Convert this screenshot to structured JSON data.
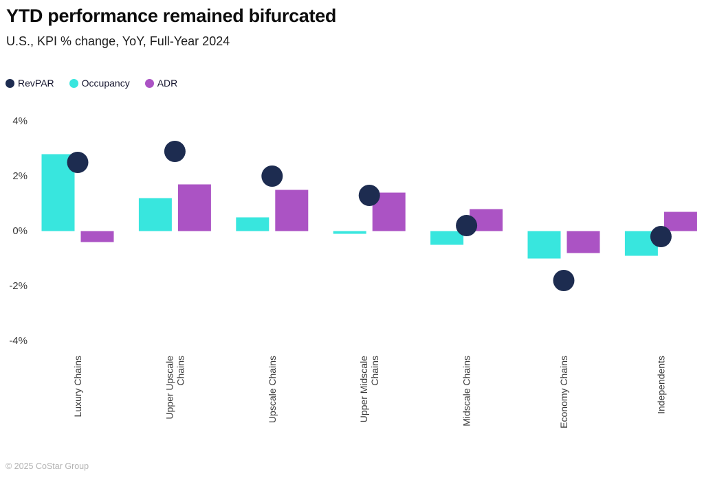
{
  "header": {
    "title": "YTD performance remained bifurcated",
    "subtitle": "U.S., KPI % change, YoY, Full-Year 2024"
  },
  "colors": {
    "revpar_navy": "#1d2c50",
    "occupancy_cyan": "#38e6de",
    "adr_purple": "#ab53c4",
    "axis_text": "#3a3a3a",
    "footer_text": "#b2b2b2"
  },
  "chart_data": {
    "type": "bar",
    "title": "YTD performance remained bifurcated",
    "subtitle": "U.S., KPI % change, YoY, Full-Year 2024",
    "xlabel": "",
    "ylabel": "KPI % change YoY",
    "ylim": [
      -4,
      4
    ],
    "grid": false,
    "legend_position": "top",
    "yticks": [
      {
        "label": "4%",
        "value": 4
      },
      {
        "label": "2%",
        "value": 2
      },
      {
        "label": "0%",
        "value": 0
      },
      {
        "label": "-2%",
        "value": -2
      },
      {
        "label": "-4%",
        "value": -4
      }
    ],
    "categories": [
      "Luxury Chains",
      "Upper Upscale Chains",
      "Upscale Chains",
      "Upper Midscale Chains",
      "Midscale Chains",
      "Economy Chains",
      "Independents"
    ],
    "category_label_lines": [
      [
        "Luxury Chains"
      ],
      [
        "Upper Upscale",
        "Chains"
      ],
      [
        "Upscale Chains"
      ],
      [
        "Upper Midscale",
        "Chains"
      ],
      [
        "Midscale Chains"
      ],
      [
        "Economy Chains"
      ],
      [
        "Independents"
      ]
    ],
    "series": [
      {
        "name": "Occupancy",
        "mark": "bar",
        "color": "#38e6de",
        "values": [
          2.8,
          1.2,
          0.5,
          -0.1,
          -0.5,
          -1.0,
          -0.9
        ]
      },
      {
        "name": "ADR",
        "mark": "bar",
        "color": "#ab53c4",
        "values": [
          -0.4,
          1.7,
          1.5,
          1.4,
          0.8,
          -0.8,
          0.7
        ]
      },
      {
        "name": "RevPAR",
        "mark": "scatter",
        "color": "#1d2c50",
        "values": [
          2.5,
          2.9,
          2.0,
          1.3,
          0.2,
          -1.8,
          -0.2
        ]
      }
    ],
    "legend_order": [
      "RevPAR",
      "Occupancy",
      "ADR"
    ]
  },
  "footer": {
    "copyright": "© 2025 CoStar Group"
  }
}
